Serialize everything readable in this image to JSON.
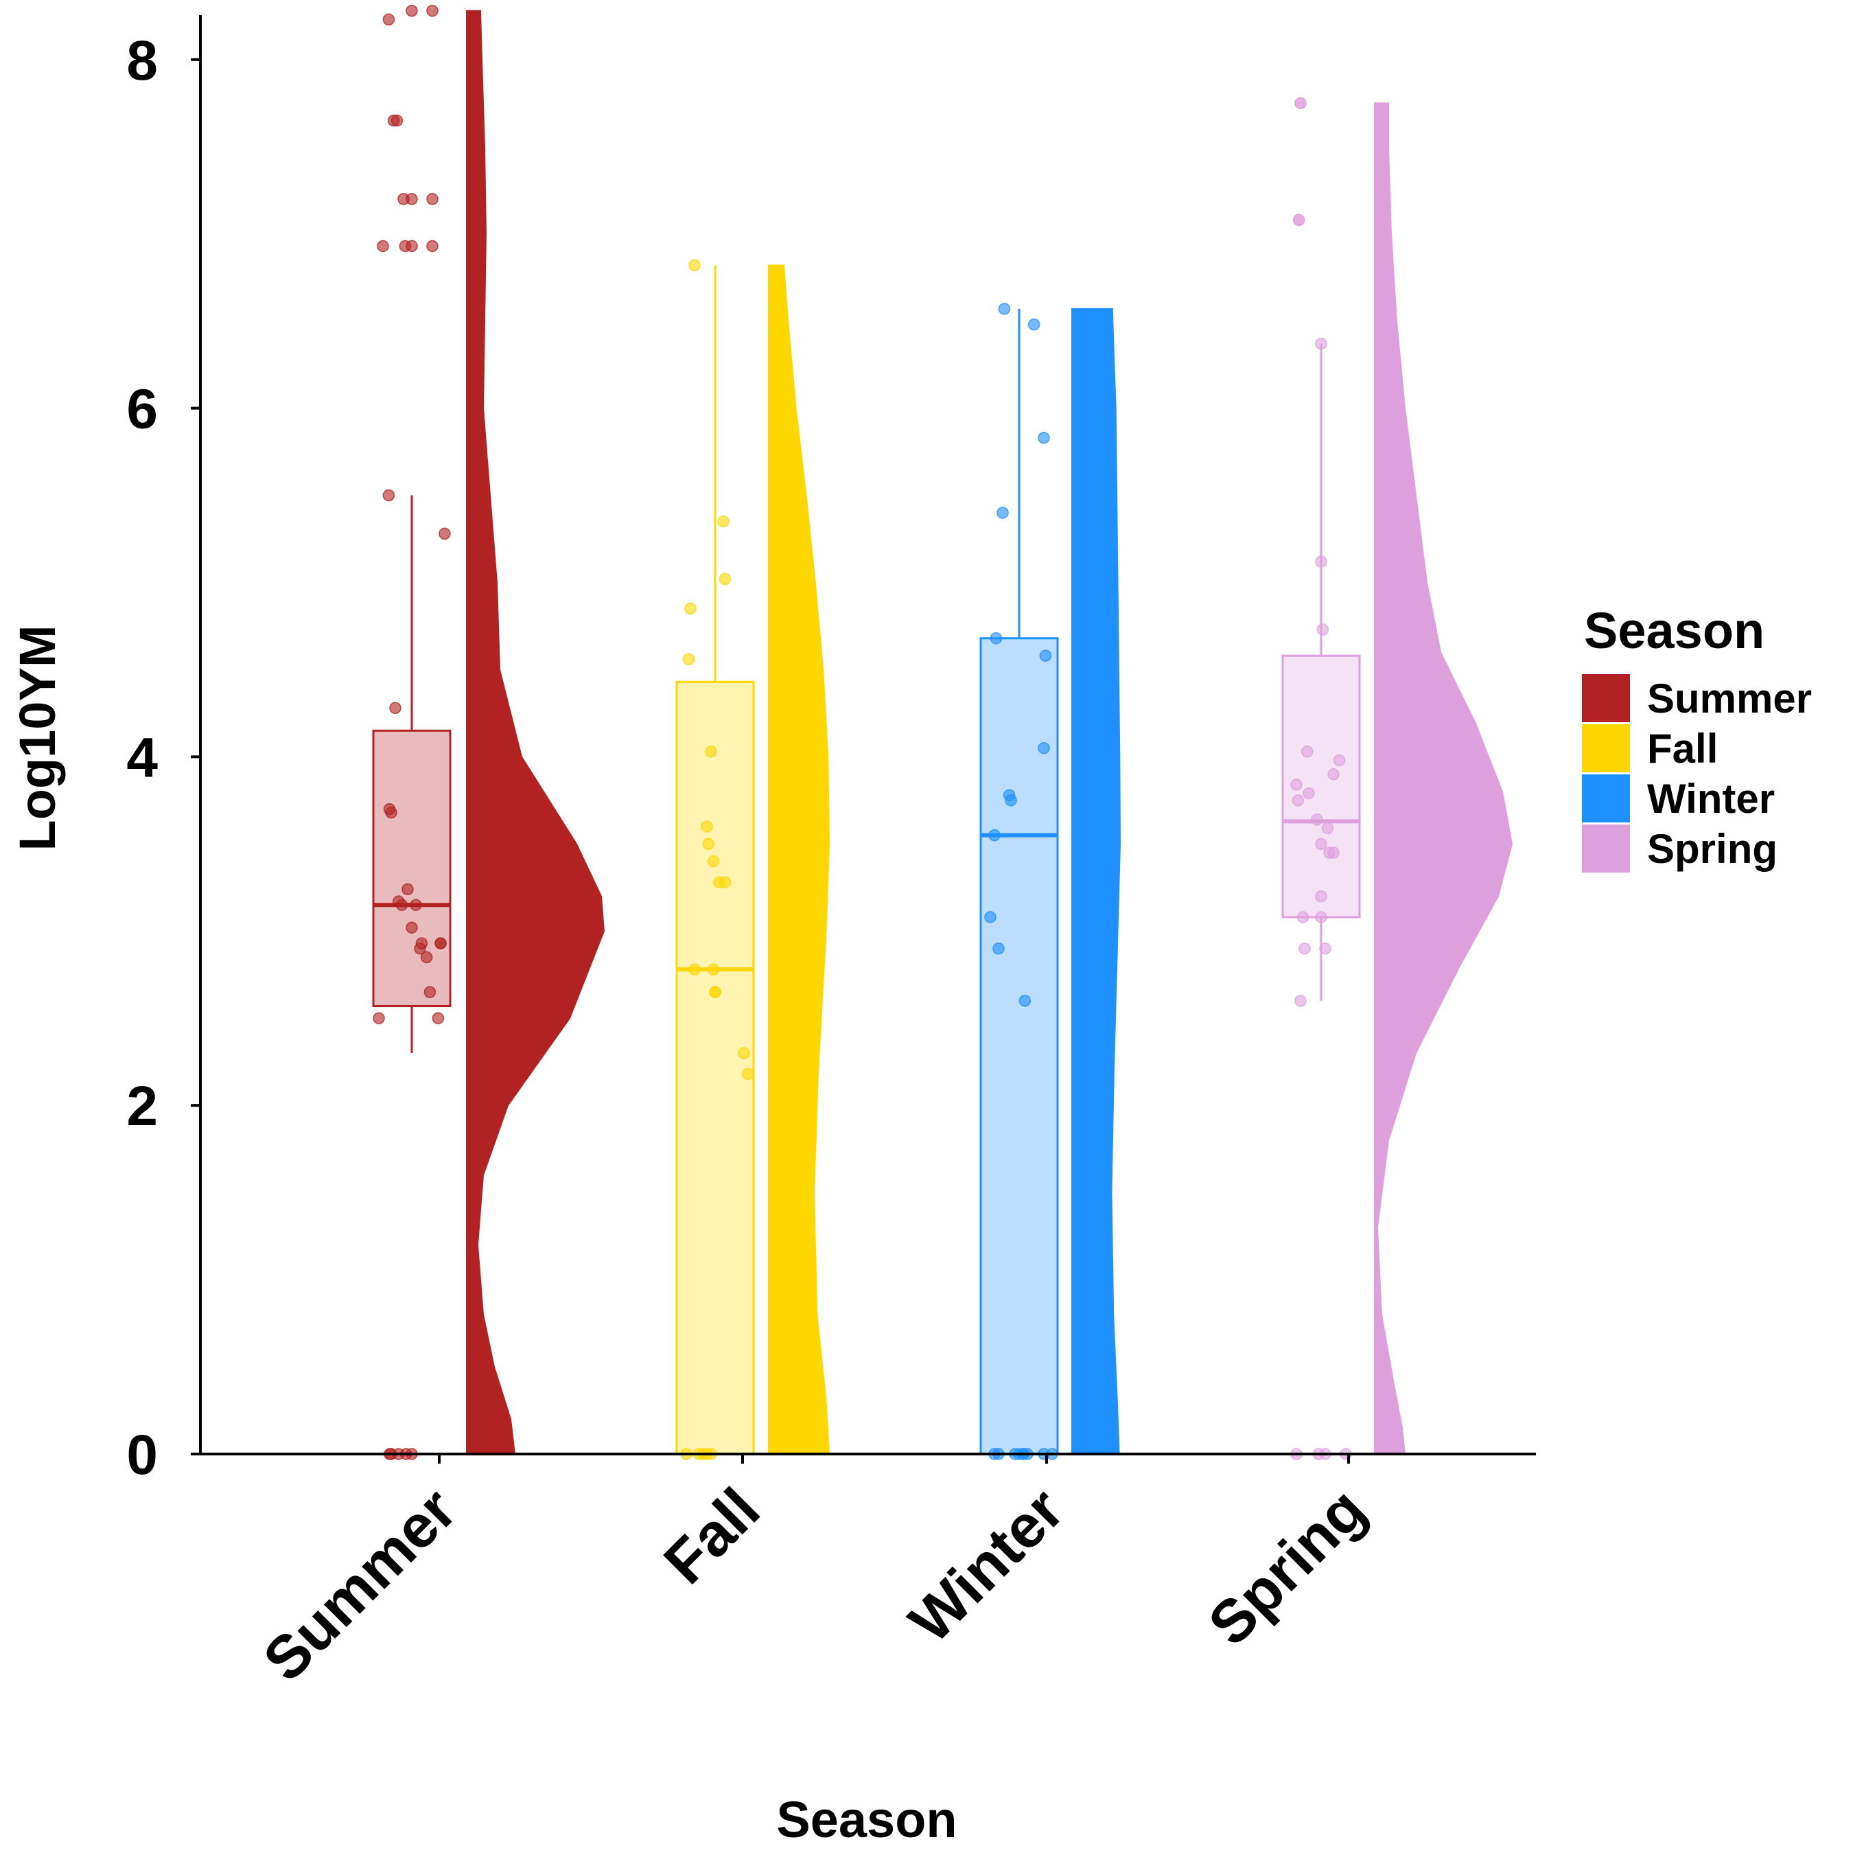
{
  "chart_data": {
    "type": "raincloud",
    "xlabel": "Season",
    "ylabel": "Log10YM",
    "ylim": [
      0,
      8.3
    ],
    "yticks": [
      0,
      2,
      4,
      6,
      8
    ],
    "grid": false,
    "categories": [
      "Summer",
      "Fall",
      "Winter",
      "Spring"
    ],
    "legend": {
      "title": "Season",
      "position": "right",
      "entries": [
        "Summer",
        "Fall",
        "Winter",
        "Spring"
      ]
    },
    "colors": {
      "Summer": "#b22222",
      "Fall": "#ffd700",
      "Winter": "#1e90ff",
      "Spring": "#dda0dd"
    },
    "boxplots": [
      {
        "name": "Summer",
        "whisker_low": 2.3,
        "q1": 2.57,
        "median": 3.15,
        "q3": 4.15,
        "whisker_high": 5.5
      },
      {
        "name": "Fall",
        "whisker_low": 0.0,
        "q1": 0.0,
        "median": 2.78,
        "q3": 4.43,
        "whisker_high": 6.82
      },
      {
        "name": "Winter",
        "whisker_low": 0.0,
        "q1": 0.0,
        "median": 3.55,
        "q3": 4.68,
        "whisker_high": 6.57
      },
      {
        "name": "Spring",
        "whisker_low": 2.6,
        "q1": 3.08,
        "median": 3.63,
        "q3": 4.58,
        "whisker_high": 6.37
      }
    ],
    "density_profiles": [
      {
        "name": "Summer",
        "y": [
          0,
          0.2,
          0.5,
          0.8,
          1.2,
          1.6,
          2.0,
          2.5,
          3.0,
          3.2,
          3.5,
          4.0,
          4.5,
          5.0,
          5.5,
          6.0,
          6.5,
          7.0,
          7.5,
          8.0,
          8.28
        ],
        "width": [
          0.35,
          0.32,
          0.2,
          0.12,
          0.08,
          0.12,
          0.3,
          0.75,
          1.0,
          0.98,
          0.8,
          0.4,
          0.24,
          0.22,
          0.17,
          0.12,
          0.13,
          0.14,
          0.13,
          0.11,
          0.1
        ]
      },
      {
        "name": "Fall",
        "y": [
          0,
          0.3,
          0.8,
          1.5,
          2.2,
          3.0,
          3.5,
          4.0,
          4.5,
          5.0,
          5.5,
          6.0,
          6.5,
          6.82
        ],
        "width": [
          1.0,
          0.95,
          0.8,
          0.75,
          0.82,
          0.95,
          1.0,
          0.98,
          0.9,
          0.77,
          0.62,
          0.45,
          0.32,
          0.25
        ]
      },
      {
        "name": "Winter",
        "y": [
          0,
          0.3,
          0.8,
          1.5,
          2.2,
          3.0,
          3.5,
          4.0,
          4.5,
          5.0,
          5.5,
          6.0,
          6.3,
          6.57
        ],
        "width": [
          0.98,
          0.94,
          0.86,
          0.82,
          0.87,
          0.95,
          1.0,
          0.99,
          0.97,
          0.95,
          0.93,
          0.91,
          0.87,
          0.84
        ]
      },
      {
        "name": "Spring",
        "y": [
          0,
          0.15,
          0.4,
          0.8,
          1.3,
          1.8,
          2.3,
          2.8,
          3.2,
          3.5,
          3.8,
          4.2,
          4.6,
          5.0,
          5.5,
          6.0,
          6.5,
          7.0,
          7.5,
          7.75
        ],
        "width": [
          0.22,
          0.2,
          0.14,
          0.05,
          0.02,
          0.1,
          0.3,
          0.62,
          0.9,
          1.0,
          0.93,
          0.73,
          0.48,
          0.38,
          0.3,
          0.22,
          0.16,
          0.12,
          0.1,
          0.1
        ]
      }
    ],
    "points": [
      {
        "name": "Summer",
        "x_jitter": [
          -0.28,
          -0.22,
          -0.18,
          -0.1,
          0.0,
          0.25,
          -0.35,
          -0.08,
          0.0,
          0.25,
          0.0,
          0.25,
          -0.28,
          0.4,
          -0.2,
          -0.27,
          -0.25,
          -0.16,
          -0.12,
          -0.05,
          0.0,
          0.05,
          0.1,
          0.12,
          0.18,
          0.22,
          0.32,
          0.35,
          0.35,
          -0.4,
          -0.27,
          -0.25,
          -0.16,
          -0.07,
          0.0
        ],
        "values": [
          8.23,
          7.65,
          7.65,
          7.2,
          7.2,
          7.2,
          6.93,
          6.93,
          6.93,
          6.93,
          8.28,
          8.28,
          5.5,
          5.28,
          4.28,
          3.7,
          3.68,
          3.17,
          3.15,
          3.24,
          3.02,
          3.15,
          2.9,
          2.93,
          2.85,
          2.65,
          2.5,
          2.93,
          2.93,
          2.5,
          0,
          0,
          0,
          0,
          0
        ]
      },
      {
        "name": "Fall",
        "x_jitter": [
          -0.25,
          -0.3,
          -0.32,
          0.1,
          0.12,
          -0.05,
          -0.1,
          -0.08,
          -0.02,
          0.0,
          0.05,
          0.12,
          -0.25,
          -0.02,
          0.0,
          0.35,
          0.4,
          -0.35,
          -0.2,
          -0.15,
          -0.1,
          -0.05
        ],
        "values": [
          6.82,
          4.85,
          4.56,
          5.35,
          5.02,
          4.03,
          3.6,
          3.5,
          3.4,
          2.65,
          3.28,
          3.28,
          2.78,
          2.78,
          2.65,
          2.3,
          2.18,
          0,
          0,
          0,
          0,
          0
        ]
      },
      {
        "name": "Winter",
        "x_jitter": [
          -0.18,
          0.18,
          -0.2,
          0.3,
          -0.28,
          0.32,
          0.3,
          -0.12,
          -0.1,
          -0.3,
          -0.35,
          -0.25,
          0.07,
          0.05,
          0.4,
          -0.3,
          -0.25,
          -0.05,
          0.0,
          0.05,
          0.1,
          0.3
        ],
        "values": [
          6.57,
          6.48,
          5.4,
          5.83,
          4.68,
          4.58,
          4.05,
          3.78,
          3.75,
          3.55,
          3.08,
          2.9,
          2.6,
          0,
          0,
          0,
          0,
          0,
          0,
          0,
          0,
          0
        ],
        "x_fix": [
          0.0,
          0.3,
          0.0,
          0.0,
          0.0,
          0.0,
          0.0,
          0.0,
          0.0,
          0.0,
          0.0,
          0.0,
          0.0,
          0.0,
          0.0,
          0.0,
          0.0,
          0.0,
          0.0,
          0.0,
          0.0,
          0.0
        ]
      },
      {
        "name": "Spring",
        "x_jitter": [
          -0.25,
          -0.25,
          -0.27,
          -0.27,
          0.0,
          0.0,
          0.02,
          -0.17,
          -0.15,
          -0.05,
          0.08,
          0.1,
          0.15,
          -0.3,
          -0.28,
          -0.22,
          -0.25,
          0.0,
          0.05,
          0.15,
          0.22,
          -0.2,
          0.0,
          0.0,
          -0.3,
          -0.03,
          0.05,
          0.3
        ],
        "values": [
          7.75,
          7.75,
          7.08,
          7.08,
          6.37,
          5.12,
          4.73,
          4.03,
          3.79,
          3.64,
          3.59,
          3.45,
          3.45,
          3.84,
          3.75,
          3.08,
          2.6,
          3.08,
          2.9,
          3.9,
          3.98,
          2.9,
          3.5,
          3.2,
          0,
          0,
          0,
          0
        ]
      }
    ]
  }
}
